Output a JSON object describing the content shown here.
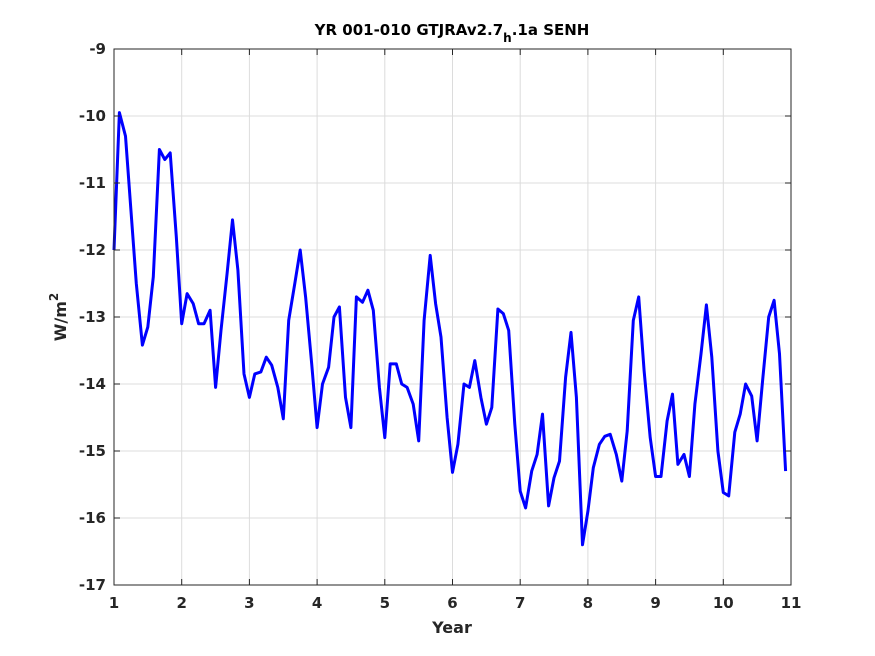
{
  "chart_data": {
    "type": "line",
    "title": "YR 001-010 GTJRAv2.7",
    "title_subscript": "h",
    "title_suffix": ".1a SENH",
    "xlabel": "Year",
    "ylabel": "W/m",
    "ylabel_superscript": "2",
    "xlim": [
      1,
      11
    ],
    "ylim": [
      -17,
      -9
    ],
    "xticks": [
      1,
      2,
      3,
      4,
      5,
      6,
      7,
      8,
      9,
      10,
      11
    ],
    "yticks": [
      -17,
      -16,
      -15,
      -14,
      -13,
      -12,
      -11,
      -10,
      -9
    ],
    "grid": true,
    "series": [
      {
        "color": "#0000ff",
        "x": [
          1.0,
          1.08,
          1.17,
          1.25,
          1.33,
          1.42,
          1.5,
          1.58,
          1.67,
          1.75,
          1.83,
          1.92,
          2.0,
          2.08,
          2.17,
          2.25,
          2.33,
          2.42,
          2.5,
          2.58,
          2.67,
          2.75,
          2.83,
          2.92,
          3.0,
          3.08,
          3.17,
          3.25,
          3.33,
          3.42,
          3.5,
          3.58,
          3.67,
          3.75,
          3.83,
          3.92,
          4.0,
          4.08,
          4.17,
          4.25,
          4.33,
          4.42,
          4.5,
          4.58,
          4.67,
          4.75,
          4.83,
          4.92,
          5.0,
          5.08,
          5.17,
          5.25,
          5.33,
          5.42,
          5.5,
          5.58,
          5.67,
          5.75,
          5.83,
          5.92,
          6.0,
          6.08,
          6.17,
          6.25,
          6.33,
          6.42,
          6.5,
          6.58,
          6.67,
          6.75,
          6.83,
          6.92,
          7.0,
          7.08,
          7.17,
          7.25,
          7.33,
          7.42,
          7.5,
          7.58,
          7.67,
          7.75,
          7.83,
          7.92,
          8.0,
          8.08,
          8.17,
          8.25,
          8.33,
          8.42,
          8.5,
          8.58,
          8.67,
          8.75,
          8.83,
          8.92,
          9.0,
          9.08,
          9.17,
          9.25,
          9.33,
          9.42,
          9.5,
          9.58,
          9.67,
          9.75,
          9.83,
          9.92,
          10.0,
          10.08,
          10.17,
          10.25,
          10.33,
          10.42,
          10.5,
          10.58,
          10.67,
          10.75,
          10.83,
          10.92
        ],
        "y": [
          -12.0,
          -9.95,
          -10.3,
          -11.4,
          -12.5,
          -13.42,
          -13.15,
          -12.4,
          -10.5,
          -10.65,
          -10.55,
          -11.8,
          -13.1,
          -12.65,
          -12.8,
          -13.1,
          -13.1,
          -12.9,
          -14.05,
          -13.2,
          -12.35,
          -11.55,
          -12.3,
          -13.85,
          -14.2,
          -13.85,
          -13.82,
          -13.6,
          -13.72,
          -14.05,
          -14.52,
          -13.05,
          -12.5,
          -12.0,
          -12.7,
          -13.7,
          -14.65,
          -14.0,
          -13.75,
          -13.0,
          -12.85,
          -14.2,
          -14.65,
          -12.7,
          -12.78,
          -12.6,
          -12.9,
          -14.05,
          -14.8,
          -13.7,
          -13.7,
          -14.0,
          -14.05,
          -14.3,
          -14.85,
          -13.05,
          -12.08,
          -12.8,
          -13.3,
          -14.5,
          -15.32,
          -14.9,
          -14.0,
          -14.05,
          -13.65,
          -14.2,
          -14.6,
          -14.35,
          -12.88,
          -12.95,
          -13.2,
          -14.6,
          -15.6,
          -15.85,
          -15.3,
          -15.05,
          -14.45,
          -15.82,
          -15.4,
          -15.15,
          -13.9,
          -13.23,
          -14.2,
          -16.4,
          -15.9,
          -15.25,
          -14.9,
          -14.78,
          -14.75,
          -15.05,
          -15.45,
          -14.7,
          -13.05,
          -12.7,
          -13.8,
          -14.8,
          -15.38,
          -15.38,
          -14.55,
          -14.15,
          -15.2,
          -15.05,
          -15.38,
          -14.3,
          -13.55,
          -12.82,
          -13.6,
          -15.0,
          -15.62,
          -15.67,
          -14.72,
          -14.45,
          -14.0,
          -14.18,
          -14.85,
          -13.95,
          -13.0,
          -12.75,
          -13.55,
          -15.3
        ]
      }
    ]
  }
}
